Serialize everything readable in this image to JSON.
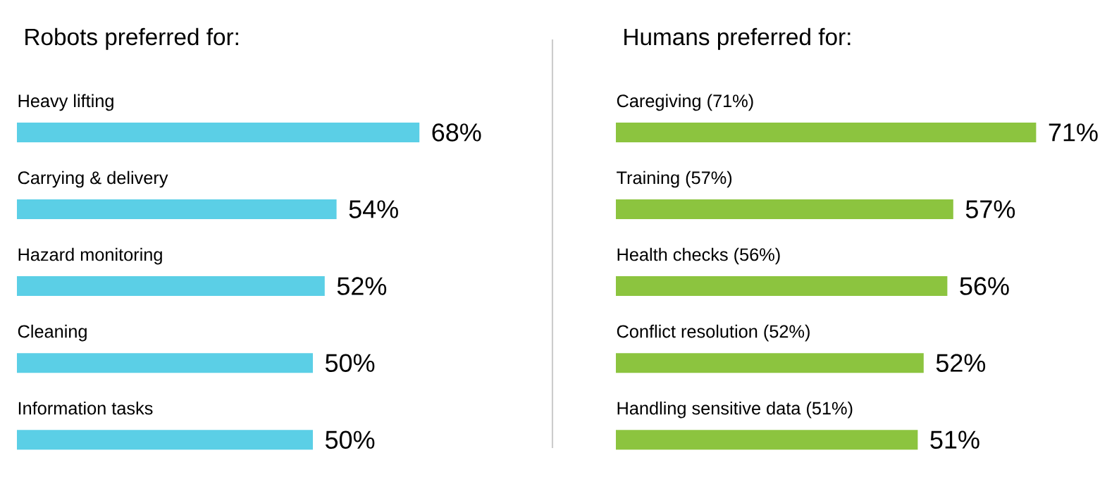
{
  "chart_data": [
    {
      "type": "bar",
      "orientation": "horizontal",
      "title": "Robots preferred for:",
      "color": "#5bcfe6",
      "categories": [
        "Heavy lifting",
        "Carrying & delivery",
        "Hazard monitoring",
        "Cleaning",
        "Information tasks"
      ],
      "values": [
        68,
        54,
        52,
        50,
        50
      ],
      "value_labels": [
        "68%",
        "54%",
        "52%",
        "50%",
        "50%"
      ]
    },
    {
      "type": "bar",
      "orientation": "horizontal",
      "title": "Humans preferred for:",
      "color": "#8cc43f",
      "categories": [
        "Caregiving (71%)",
        "Training (57%)",
        "Health checks (56%)",
        "Conflict resolution (52%)",
        "Handling sensitive data (51%)"
      ],
      "values": [
        71,
        57,
        56,
        52,
        51
      ],
      "value_labels": [
        "71%",
        "57%",
        "56%",
        "52%",
        "51%"
      ]
    }
  ]
}
